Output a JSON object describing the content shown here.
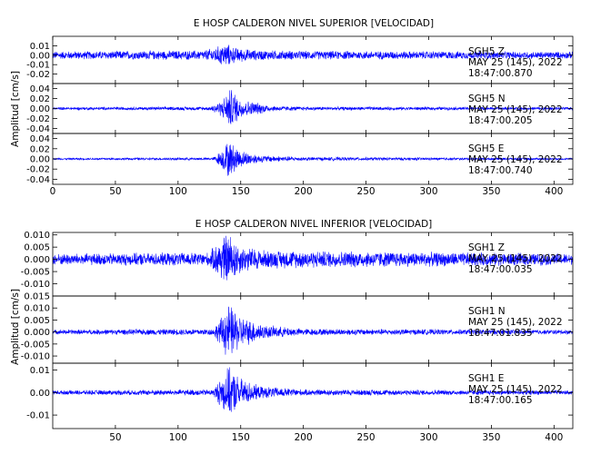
{
  "chart_data": [
    {
      "type": "line",
      "title": "E HOSP CALDERON NIVEL SUPERIOR [VELOCIDAD]",
      "ylabel": "Amplitud [cm/s]",
      "xlim": [
        0,
        415
      ],
      "x_ticks": [
        0,
        50,
        100,
        150,
        200,
        250,
        300,
        350,
        400
      ],
      "x_tick_labels": [
        "0",
        "50",
        "100",
        "150",
        "200",
        "250",
        "300",
        "350",
        "400"
      ],
      "grid": false,
      "color": "#0000ff",
      "traces": [
        {
          "station": "SGH5",
          "component": "Z",
          "date": "MAY 25 (145), 2022",
          "time": "18:47:00.870",
          "ylim": [
            -0.03,
            0.02
          ],
          "y_ticks": [
            0.01,
            0.0,
            -0.01,
            -0.02
          ],
          "y_tick_labels": [
            "0.01",
            "0.00",
            "-0.01",
            "-0.02"
          ],
          "noise_amplitude": 0.0045,
          "envelope": [
            [
              0,
              0.0045
            ],
            [
              120,
              0.0055
            ],
            [
              130,
              0.009
            ],
            [
              138,
              0.014
            ],
            [
              145,
              0.009
            ],
            [
              160,
              0.006
            ],
            [
              200,
              0.005
            ],
            [
              415,
              0.004
            ]
          ]
        },
        {
          "station": "SGH5",
          "component": "N",
          "date": "MAY 25 (145), 2022",
          "time": "18:47:00.205",
          "ylim": [
            -0.05,
            0.05
          ],
          "y_ticks": [
            0.04,
            0.02,
            0.0,
            -0.02,
            -0.04
          ],
          "y_tick_labels": [
            "0.04",
            "0.02",
            "0.00",
            "-0.02",
            "-0.04"
          ],
          "noise_amplitude": 0.003,
          "envelope": [
            [
              0,
              0.003
            ],
            [
              125,
              0.004
            ],
            [
              135,
              0.018
            ],
            [
              142,
              0.045
            ],
            [
              150,
              0.02
            ],
            [
              165,
              0.012
            ],
            [
              175,
              0.006
            ],
            [
              200,
              0.004
            ],
            [
              415,
              0.003
            ]
          ]
        },
        {
          "station": "SGH5",
          "component": "E",
          "date": "MAY 25 (145), 2022",
          "time": "18:47:00.740",
          "ylim": [
            -0.05,
            0.05
          ],
          "y_ticks": [
            0.04,
            0.02,
            0.0,
            -0.02,
            -0.04
          ],
          "y_tick_labels": [
            "0.04",
            "0.02",
            "0.00",
            "-0.02",
            "-0.04"
          ],
          "noise_amplitude": 0.002,
          "envelope": [
            [
              0,
              0.002
            ],
            [
              128,
              0.003
            ],
            [
              135,
              0.02
            ],
            [
              140,
              0.04
            ],
            [
              150,
              0.018
            ],
            [
              165,
              0.008
            ],
            [
              200,
              0.004
            ],
            [
              415,
              0.002
            ]
          ]
        }
      ]
    },
    {
      "type": "line",
      "title": "E HOSP CALDERON NIVEL INFERIOR [VELOCIDAD]",
      "ylabel": "Amplitud [cm/s]",
      "xlim": [
        0,
        415
      ],
      "x_ticks": [
        50,
        100,
        150,
        200,
        250,
        300,
        350,
        400
      ],
      "x_tick_labels": [
        "50",
        "100",
        "150",
        "200",
        "250",
        "300",
        "350",
        "400"
      ],
      "grid": false,
      "color": "#0000ff",
      "traces": [
        {
          "station": "SGH1",
          "component": "Z",
          "date": "MAY 25 (145), 2022",
          "time": "18:47:00.035",
          "ylim": [
            -0.015,
            0.011
          ],
          "y_ticks": [
            0.01,
            0.005,
            0.0,
            -0.005,
            -0.01
          ],
          "y_tick_labels": [
            "0.010",
            "0.005",
            "0.000",
            "-0.005",
            "-0.010"
          ],
          "noise_amplitude": 0.0025,
          "envelope": [
            [
              0,
              0.0025
            ],
            [
              125,
              0.003
            ],
            [
              133,
              0.009
            ],
            [
              140,
              0.012
            ],
            [
              150,
              0.006
            ],
            [
              170,
              0.004
            ],
            [
              415,
              0.0025
            ]
          ]
        },
        {
          "station": "SGH1",
          "component": "N",
          "date": "MAY 25 (145), 2022",
          "time": "18:47:01.835",
          "ylim": [
            -0.013,
            0.015
          ],
          "y_ticks": [
            0.015,
            0.01,
            0.005,
            0.0,
            -0.005,
            -0.01
          ],
          "y_tick_labels": [
            "0.015",
            "0.010",
            "0.005",
            "0.000",
            "-0.005",
            "-0.010"
          ],
          "noise_amplitude": 0.001,
          "envelope": [
            [
              0,
              0.001
            ],
            [
              128,
              0.0015
            ],
            [
              135,
              0.007
            ],
            [
              140,
              0.013
            ],
            [
              150,
              0.007
            ],
            [
              170,
              0.003
            ],
            [
              200,
              0.0015
            ],
            [
              415,
              0.001
            ]
          ]
        },
        {
          "station": "SGH1",
          "component": "E",
          "date": "MAY 25 (145), 2022",
          "time": "18:47:00.165",
          "ylim": [
            -0.016,
            0.013
          ],
          "y_ticks": [
            0.01,
            0.0,
            -0.01
          ],
          "y_tick_labels": [
            "0.01",
            "0.00",
            "-0.01"
          ],
          "noise_amplitude": 0.001,
          "envelope": [
            [
              0,
              0.001
            ],
            [
              128,
              0.0015
            ],
            [
              135,
              0.008
            ],
            [
              140,
              0.012
            ],
            [
              150,
              0.007
            ],
            [
              165,
              0.003
            ],
            [
              200,
              0.0015
            ],
            [
              415,
              0.001
            ]
          ]
        }
      ]
    }
  ]
}
